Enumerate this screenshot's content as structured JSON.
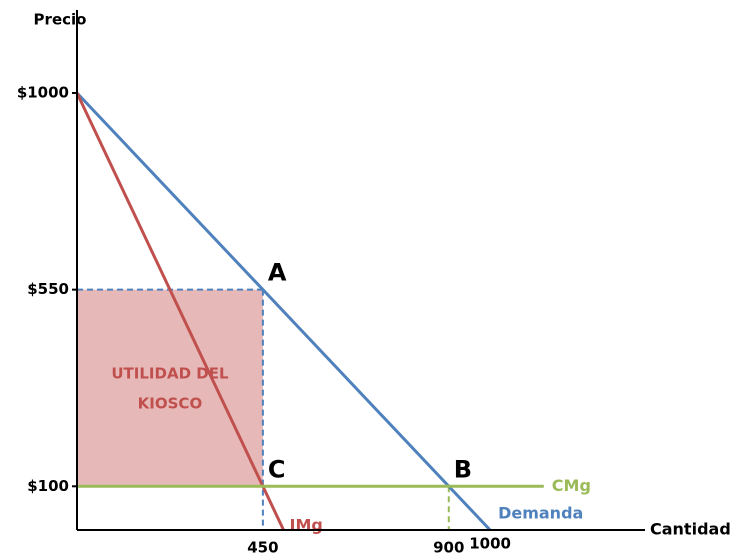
{
  "chart_data": {
    "type": "line",
    "y_label": "Precio",
    "x_label": "Cantidad",
    "xlim": [
      0,
      1375
    ],
    "ylim": [
      0,
      1000
    ],
    "xticks": [
      450,
      900,
      1000
    ],
    "yticks": [
      {
        "value": 100,
        "label": "$100"
      },
      {
        "value": 550,
        "label": "$550"
      },
      {
        "value": 1000,
        "label": "$1000"
      }
    ],
    "series": [
      {
        "name": "Demanda",
        "color": "#4f81bd",
        "x": [
          0,
          1000
        ],
        "values": [
          1000,
          0
        ]
      },
      {
        "name": "IMg",
        "color": "#c0504d",
        "x": [
          0,
          500
        ],
        "values": [
          1000,
          0
        ]
      },
      {
        "name": "CMg",
        "color": "#9bbb59",
        "x": [
          0,
          1130
        ],
        "values": [
          100,
          100
        ]
      }
    ],
    "region": {
      "label_lines": [
        "UTILIDAD DEL",
        "KIOSCO"
      ],
      "x": [
        0,
        450
      ],
      "y": [
        100,
        550
      ],
      "color": "#e6b9b8",
      "text_color": "#c0504d"
    },
    "guides": [
      {
        "x": 450,
        "y": 550,
        "color": "#4f81bd"
      },
      {
        "x": 900,
        "y": 100,
        "color": "#9bbb59"
      }
    ],
    "annotations": [
      {
        "text": "A",
        "x": 450,
        "y": 550
      },
      {
        "text": "B",
        "x": 900,
        "y": 100
      },
      {
        "text": "C",
        "x": 450,
        "y": 100
      }
    ]
  }
}
